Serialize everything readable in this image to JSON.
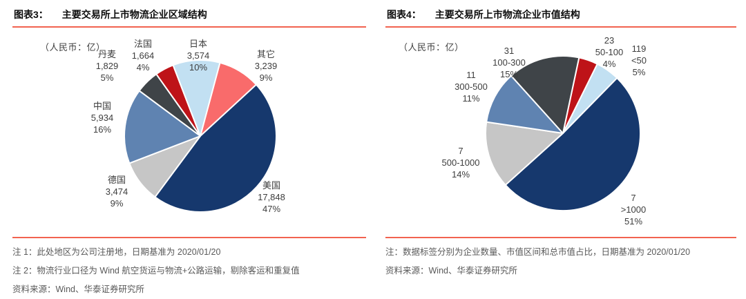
{
  "theme": {
    "accent_color": "#F2624F",
    "pie_gap_color": "#FFFFFF",
    "label_text_color": "#3D3D3D",
    "note_text_color": "#595959"
  },
  "chart_data": [
    {
      "type": "pie",
      "figure_label": "图表3：",
      "title": "主要交易所上市物流企业区域结构",
      "unit_label": "（人民币：亿）",
      "start_angle_deg": 15,
      "legend_position": "none",
      "slices": [
        {
          "name": "其它",
          "value": 3239,
          "value_label": "3,239",
          "percent": 9,
          "percent_label": "9%",
          "color": "#F96B6B"
        },
        {
          "name": "美国",
          "value": 17848,
          "value_label": "17,848",
          "percent": 47,
          "percent_label": "47%",
          "color": "#16386D"
        },
        {
          "name": "德国",
          "value": 3474,
          "value_label": "3,474",
          "percent": 9,
          "percent_label": "9%",
          "color": "#C6C6C6"
        },
        {
          "name": "中国",
          "value": 5934,
          "value_label": "5,934",
          "percent": 16,
          "percent_label": "16%",
          "color": "#5F83B1"
        },
        {
          "name": "丹麦",
          "value": 1829,
          "value_label": "1,829",
          "percent": 5,
          "percent_label": "5%",
          "color": "#3F4448"
        },
        {
          "name": "法国",
          "value": 1664,
          "value_label": "1,664",
          "percent": 4,
          "percent_label": "4%",
          "color": "#BE1318"
        },
        {
          "name": "日本",
          "value": 3574,
          "value_label": "3,574",
          "percent": 10,
          "percent_label": "10%",
          "color": "#C2E0F2"
        }
      ],
      "notes": [
        "注 1：此处地区为公司注册地，日期基准为 2020/01/20",
        "注 2：物流行业口径为 Wind 航空货运与物流+公路运输，剔除客运和重复值"
      ],
      "source": "资料来源：Wind、华泰证券研究所"
    },
    {
      "type": "pie",
      "figure_label": "图表4：",
      "title": "主要交易所上市物流企业市值结构",
      "unit_label": "（人民币：亿）",
      "start_angle_deg": 12,
      "legend_position": "none",
      "slices": [
        {
          "count": 23,
          "count_label": "23",
          "range": "50-100",
          "percent": 4,
          "percent_label": "4%",
          "color": "#BE1318"
        },
        {
          "count": 119,
          "count_label": "119",
          "range": "<50",
          "percent": 5,
          "percent_label": "5%",
          "color": "#C2E0F2"
        },
        {
          "count": 7,
          "count_label": "7",
          "range": ">1000",
          "percent": 51,
          "percent_label": "51%",
          "color": "#16386D"
        },
        {
          "count": 7,
          "count_label": "7",
          "range": "500-1000",
          "percent": 14,
          "percent_label": "14%",
          "color": "#C6C6C6"
        },
        {
          "count": 11,
          "count_label": "11",
          "range": "300-500",
          "percent": 11,
          "percent_label": "11%",
          "color": "#5F83B1"
        },
        {
          "count": 31,
          "count_label": "31",
          "range": "100-300",
          "percent": 15,
          "percent_label": "15%",
          "color": "#3F4448"
        }
      ],
      "notes": [
        "注：数据标签分别为企业数量、市值区间和总市值占比，日期基准为 2020/01/20"
      ],
      "source": "资料来源：Wind、华泰证券研究所"
    }
  ]
}
